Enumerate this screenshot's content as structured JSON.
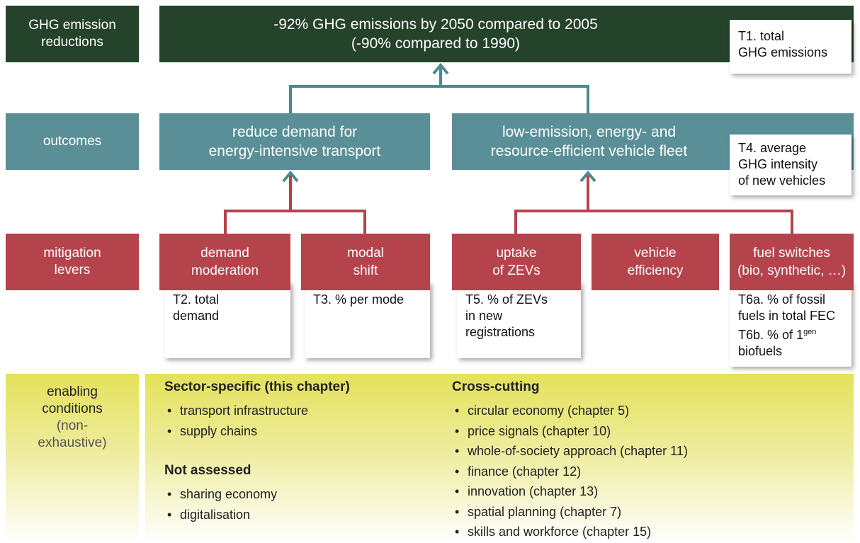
{
  "goal": {
    "label": "GHG emission reductions",
    "lines": [
      "-92% GHG emissions by 2050 compared to 2005",
      "(-90% compared to 1990)"
    ],
    "target": [
      "T1. total",
      "GHG emissions"
    ]
  },
  "outcomes": {
    "label": "outcomes",
    "items": [
      {
        "lines": [
          "reduce demand for",
          "energy-intensive transport"
        ]
      },
      {
        "lines": [
          "low-emission, energy- and",
          "resource-efficient vehicle fleet"
        ],
        "target": [
          "T4. average",
          "GHG intensity",
          "of new vehicles"
        ]
      }
    ]
  },
  "levers": {
    "label": [
      "mitigation",
      "levers"
    ],
    "items": [
      {
        "lines": [
          "demand",
          "moderation"
        ],
        "target": [
          "T2. total",
          "demand"
        ]
      },
      {
        "lines": [
          "modal",
          "shift"
        ],
        "target": [
          "T3. % per mode"
        ]
      },
      {
        "lines": [
          "uptake",
          "of ZEVs"
        ],
        "target": [
          "T5. % of ZEVs",
          "in new",
          "registrations"
        ]
      },
      {
        "lines": [
          "vehicle",
          "efficiency"
        ]
      },
      {
        "lines": [
          "fuel switches",
          "(bio, synthetic, …)"
        ],
        "target": [
          "T6a. % of fossil",
          "fuels in total FEC",
          "T6b. % of 1",
          "gen",
          "biofuels"
        ]
      }
    ]
  },
  "enabling": {
    "label": [
      "enabling",
      "conditions"
    ],
    "note": [
      "(non-",
      "exhaustive)"
    ],
    "sector_specific": {
      "heading": "Sector-specific (this chapter)",
      "items": [
        "transport infrastructure",
        "supply chains"
      ]
    },
    "not_assessed": {
      "heading": "Not assessed",
      "items": [
        "sharing economy",
        "digitalisation"
      ]
    },
    "cross_cutting": {
      "heading": "Cross-cutting",
      "items": [
        "circular economy (chapter 5)",
        "price signals (chapter 10)",
        "whole-of-society approach (chapter 11)",
        "finance (chapter 12)",
        "innovation (chapter 13)",
        "spatial planning (chapter 7)",
        "skills and workforce (chapter 15)"
      ]
    }
  }
}
